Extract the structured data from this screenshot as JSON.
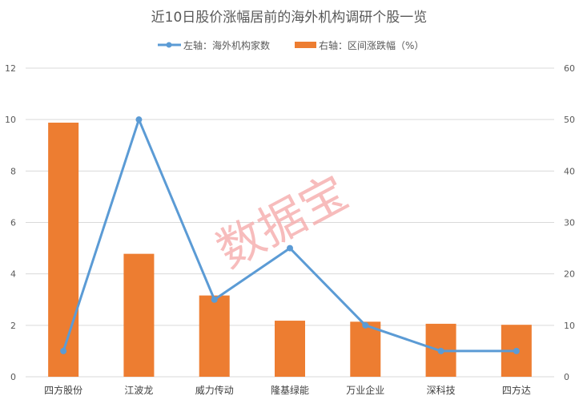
{
  "chart_data": {
    "type": "bar+line",
    "title": "近10日股价涨幅居前的海外机构调研个股一览",
    "categories": [
      "四方股份",
      "江波龙",
      "威力传动",
      "隆基绿能",
      "万业企业",
      "深科技",
      "四方达"
    ],
    "series": [
      {
        "name": "左轴：海外机构家数",
        "type": "line",
        "axis": "left",
        "color": "#5B9BD5",
        "values": [
          1,
          10,
          3,
          5,
          2,
          1,
          1
        ]
      },
      {
        "name": "右轴：区间涨跌幅（%）",
        "type": "bar",
        "axis": "right",
        "color": "#ED7D31",
        "values": [
          49.4,
          23.9,
          15.8,
          10.9,
          10.7,
          10.3,
          10.1
        ]
      }
    ],
    "left_axis": {
      "ylim": [
        0,
        12
      ],
      "ticks": [
        "0",
        "2",
        "4",
        "6",
        "8",
        "10",
        "12"
      ]
    },
    "right_axis": {
      "ylim": [
        0,
        60
      ],
      "ticks": [
        "0",
        "10",
        "20",
        "30",
        "40",
        "50",
        "60"
      ]
    },
    "grid": true,
    "legend_placement": "top"
  },
  "watermark": "数据宝"
}
